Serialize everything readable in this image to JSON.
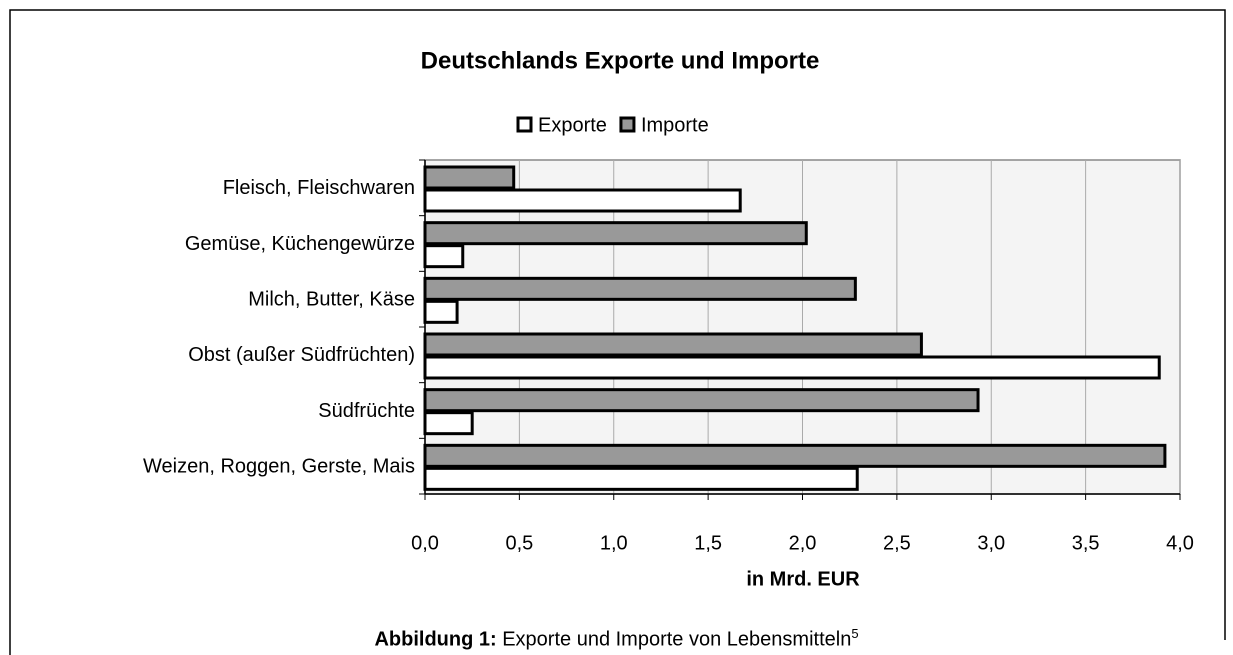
{
  "chart_data": {
    "type": "barh",
    "title": "Deutschlands Exporte und Importe",
    "x_label": "in Mrd. EUR",
    "categories": [
      "Fleisch, Fleischwaren",
      "Gemüse, Küchengewürze",
      "Milch, Butter, Käse",
      "Obst (außer Südfrüchten)",
      "Südfrüchte",
      "Weizen, Roggen, Gerste, Mais"
    ],
    "series": [
      {
        "name": "Exporte",
        "color": "#ffffff",
        "values": [
          1.67,
          0.2,
          0.17,
          3.89,
          0.25,
          2.29
        ]
      },
      {
        "name": "Importe",
        "color": "#999999",
        "values": [
          0.47,
          2.02,
          2.28,
          2.63,
          2.93,
          3.92
        ]
      }
    ],
    "xlim": [
      0,
      4
    ],
    "xticks": [
      {
        "value": 0,
        "label": "0,0"
      },
      {
        "value": 0.5,
        "label": "0,5"
      },
      {
        "value": 1,
        "label": "1,0"
      },
      {
        "value": 1.5,
        "label": "1,5"
      },
      {
        "value": 2,
        "label": "2,0"
      },
      {
        "value": 2.5,
        "label": "2,5"
      },
      {
        "value": 3,
        "label": "3,0"
      },
      {
        "value": 3.5,
        "label": "3,5"
      },
      {
        "value": 4,
        "label": "4,0"
      }
    ],
    "grid": true,
    "legend": "top"
  },
  "caption": {
    "label": "Abbildung 1:",
    "text": "Exporte und Importe von Lebensmitteln",
    "footnote": "5"
  }
}
